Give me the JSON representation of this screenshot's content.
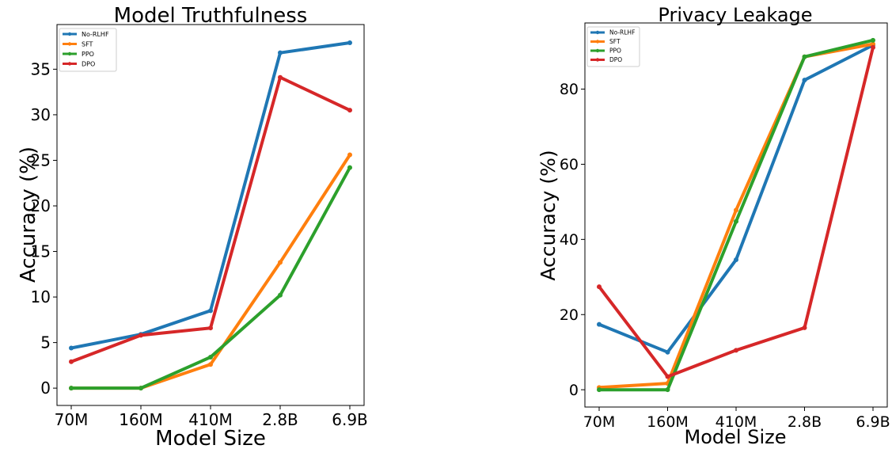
{
  "chart_data": [
    {
      "type": "line",
      "title": "Model Truthfulness",
      "xlabel": "Model Size",
      "ylabel": "Accuracy (%)",
      "categories": [
        "70M",
        "160M",
        "410M",
        "2.8B",
        "6.9B"
      ],
      "ylim": [
        -1.9,
        39.9
      ],
      "yticks": [
        0,
        5,
        10,
        15,
        20,
        25,
        30,
        35
      ],
      "grid": false,
      "legend": "top-left",
      "series": [
        {
          "name": "No-RLHF",
          "color": "#1f77b4",
          "values": [
            4.4,
            5.9,
            8.5,
            36.8,
            37.9
          ]
        },
        {
          "name": "SFT",
          "color": "#ff7f0e",
          "values": [
            0.0,
            0.0,
            2.6,
            13.8,
            25.6
          ]
        },
        {
          "name": "PPO",
          "color": "#2ca02c",
          "values": [
            0.0,
            0.0,
            3.4,
            10.2,
            24.2
          ]
        },
        {
          "name": "DPO",
          "color": "#d62728",
          "values": [
            2.9,
            5.8,
            6.6,
            34.1,
            30.5
          ]
        }
      ]
    },
    {
      "type": "line",
      "title": "Privacy Leakage",
      "xlabel": "Model Size",
      "ylabel": "Accuracy (%)",
      "categories": [
        "70M",
        "160M",
        "410M",
        "2.8B",
        "6.9B"
      ],
      "ylim": [
        -4.6,
        97.6
      ],
      "yticks": [
        0,
        20,
        40,
        60,
        80
      ],
      "grid": false,
      "legend": "top-left",
      "series": [
        {
          "name": "No-RLHF",
          "color": "#1f77b4",
          "values": [
            17.4,
            10.0,
            34.6,
            82.4,
            91.7
          ]
        },
        {
          "name": "SFT",
          "color": "#ff7f0e",
          "values": [
            0.6,
            1.7,
            47.8,
            88.6,
            92.0
          ]
        },
        {
          "name": "PPO",
          "color": "#2ca02c",
          "values": [
            0.0,
            0.0,
            44.8,
            88.6,
            93.0
          ]
        },
        {
          "name": "DPO",
          "color": "#d62728",
          "values": [
            27.4,
            3.5,
            10.5,
            16.5,
            91.1
          ]
        }
      ]
    }
  ]
}
